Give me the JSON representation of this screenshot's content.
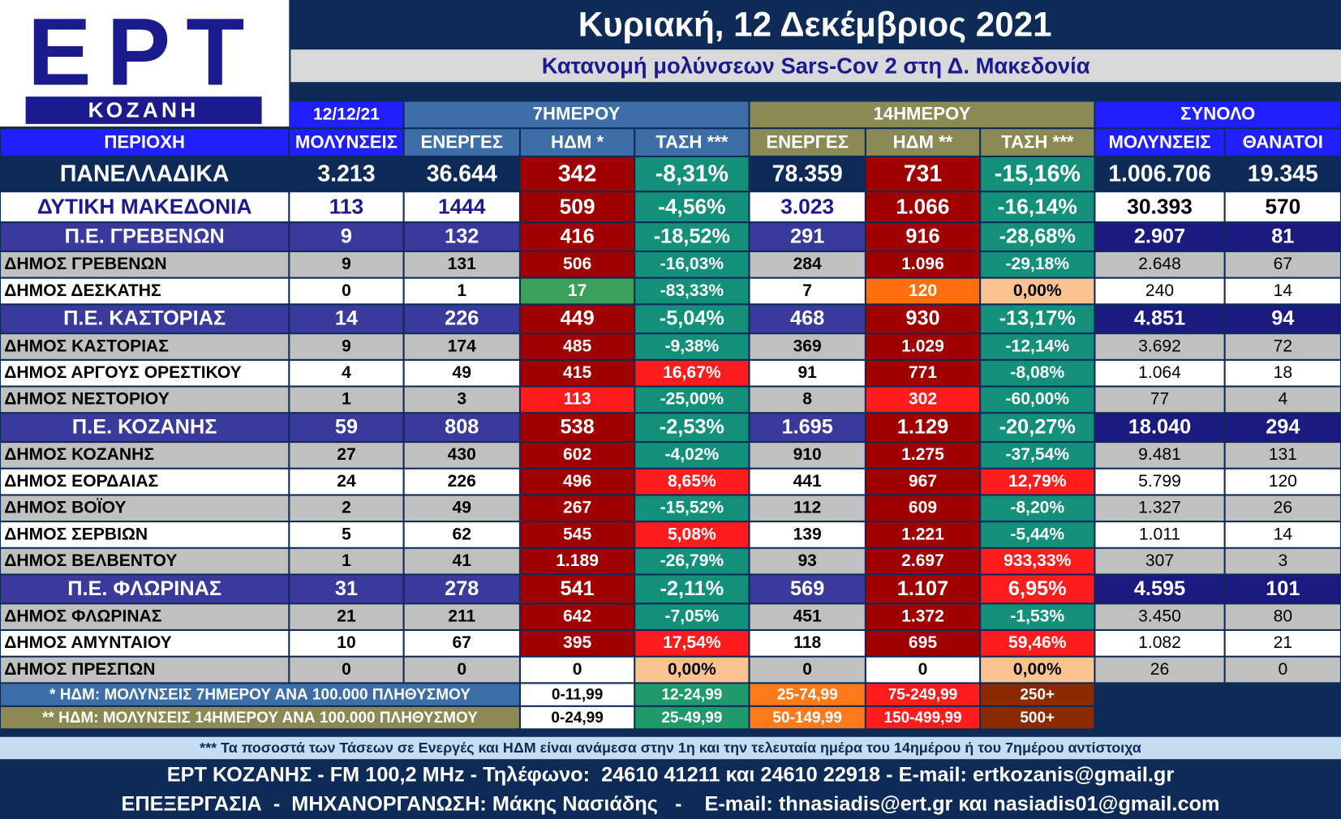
{
  "header": {
    "logo": {
      "brand": "ΕΡΤ",
      "city": "ΚΟΖΑΝΗ"
    },
    "title": "Κυριακή, 12 Δεκέμβριος 2021",
    "subtitle": "Κατανομή μολύνσεων Sars-Cov 2 στη Δ. Μακεδονία"
  },
  "table": {
    "date": "12/12/21",
    "groups": [
      "7ΗΜΕΡΟΥ",
      "14ΗΜΕΡΟΥ",
      "ΣΥΝΟΛΟ"
    ],
    "columns": [
      "ΠΕΡΙΟΧΗ",
      "ΜΟΛΥΝΣΕΙΣ",
      "ΕΝΕΡΓΕΣ",
      "ΗΔΜ *",
      "ΤΑΣΗ ***",
      "ΕΝΕΡΓΕΣ",
      "ΗΔΜ **",
      "ΤΑΣΗ ***",
      "ΜΟΛΥΝΣΕΙΣ",
      "ΘΑΝΑΤΟΙ"
    ],
    "national": [
      "ΠΑΝΕΛΛΑΔΙΚΑ",
      "3.213",
      "36.644",
      "342",
      "-8,31%",
      "78.359",
      "731",
      "-15,16%",
      "1.006.706",
      "19.345"
    ],
    "region": [
      "ΔΥΤΙΚΗ ΜΑΚΕΔΟΝΙΑ",
      "113",
      "1444",
      "509",
      "-4,56%",
      "3.023",
      "1.066",
      "-16,14%",
      "30.393",
      "570"
    ],
    "units": [
      {
        "row": [
          "Π.Ε. ΓΡΕΒΕΝΩΝ",
          "9",
          "132",
          "416",
          "-18,52%",
          "291",
          "916",
          "-28,68%",
          "2.907",
          "81"
        ],
        "municipalities": [
          [
            "ΔΗΜΟΣ ΓΡΕΒΕΝΩΝ",
            "9",
            "131",
            "506",
            "-16,03%",
            "284",
            "1.096",
            "-29,18%",
            "2.648",
            "67"
          ],
          [
            "ΔΗΜΟΣ ΔΕΣΚΑΤΗΣ",
            "0",
            "1",
            "17",
            "-83,33%",
            "7",
            "120",
            "0,00%",
            "240",
            "14"
          ]
        ]
      },
      {
        "row": [
          "Π.Ε. ΚΑΣΤΟΡΙΑΣ",
          "14",
          "226",
          "449",
          "-5,04%",
          "468",
          "930",
          "-13,17%",
          "4.851",
          "94"
        ],
        "municipalities": [
          [
            "ΔΗΜΟΣ ΚΑΣΤΟΡΙΑΣ",
            "9",
            "174",
            "485",
            "-9,38%",
            "369",
            "1.029",
            "-12,14%",
            "3.692",
            "72"
          ],
          [
            "ΔΗΜΟΣ ΑΡΓΟΥΣ ΟΡΕΣΤΙΚΟΥ",
            "4",
            "49",
            "415",
            "16,67%",
            "91",
            "771",
            "-8,08%",
            "1.064",
            "18"
          ],
          [
            "ΔΗΜΟΣ ΝΕΣΤΟΡΙΟΥ",
            "1",
            "3",
            "113",
            "-25,00%",
            "8",
            "302",
            "-60,00%",
            "77",
            "4"
          ]
        ]
      },
      {
        "row": [
          "Π.Ε. ΚΟΖΑΝΗΣ",
          "59",
          "808",
          "538",
          "-2,53%",
          "1.695",
          "1.129",
          "-20,27%",
          "18.040",
          "294"
        ],
        "municipalities": [
          [
            "ΔΗΜΟΣ ΚΟΖΑΝΗΣ",
            "27",
            "430",
            "602",
            "-4,02%",
            "910",
            "1.275",
            "-37,54%",
            "9.481",
            "131"
          ],
          [
            "ΔΗΜΟΣ ΕΟΡΔΑΙΑΣ",
            "24",
            "226",
            "496",
            "8,65%",
            "441",
            "967",
            "12,79%",
            "5.799",
            "120"
          ],
          [
            "ΔΗΜΟΣ ΒΟΪΟΥ",
            "2",
            "49",
            "267",
            "-15,52%",
            "112",
            "609",
            "-8,20%",
            "1.327",
            "26"
          ],
          [
            "ΔΗΜΟΣ ΣΕΡΒΙΩΝ",
            "5",
            "62",
            "545",
            "5,08%",
            "139",
            "1.221",
            "-5,44%",
            "1.011",
            "14"
          ],
          [
            "ΔΗΜΟΣ ΒΕΛΒΕΝΤΟΥ",
            "1",
            "41",
            "1.189",
            "-26,79%",
            "93",
            "2.697",
            "933,33%",
            "307",
            "3"
          ]
        ]
      },
      {
        "row": [
          "Π.Ε. ΦΛΩΡΙΝΑΣ",
          "31",
          "278",
          "541",
          "-2,11%",
          "569",
          "1.107",
          "6,95%",
          "4.595",
          "101"
        ],
        "municipalities": [
          [
            "ΔΗΜΟΣ ΦΛΩΡΙΝΑΣ",
            "21",
            "211",
            "642",
            "-7,05%",
            "451",
            "1.372",
            "-1,53%",
            "3.450",
            "80"
          ],
          [
            "ΔΗΜΟΣ ΑΜΥΝΤΑΙΟΥ",
            "10",
            "67",
            "395",
            "17,54%",
            "118",
            "695",
            "59,46%",
            "1.082",
            "21"
          ],
          [
            "ΔΗΜΟΣ ΠΡΕΣΠΩΝ",
            "0",
            "0",
            "0",
            "0,00%",
            "0",
            "0",
            "0,00%",
            "26",
            "0"
          ]
        ]
      }
    ]
  },
  "legend": {
    "rows": [
      {
        "label": "* ΗΔΜ: ΜΟΛΥΝΣΕΙΣ 7ΗΜΕΡΟΥ ΑΝΑ 100.000 ΠΛΗΘΥΣΜΟΥ",
        "ranges": [
          "0-11,99",
          "12-24,99",
          "25-74,99",
          "75-249,99",
          "250+"
        ]
      },
      {
        "label": "** ΗΔΜ: ΜΟΛΥΝΣΕΙΣ 14ΗΜΕΡΟΥ ΑΝΑ 100.000 ΠΛΗΘΥΣΜΟΥ",
        "ranges": [
          "0-24,99",
          "25-49,99",
          "50-149,99",
          "150-499,99",
          "500+"
        ]
      }
    ]
  },
  "note": "*** Τα ποσοστά των Τάσεων σε Ενεργές και ΗΔΜ είναι ανάμεσα στην 1η και την τελευταία ημέρα του 14ημέρου ή του 7ημέρου αντίστοιχα",
  "footer": [
    "ΕΡΤ ΚΟΖΑΝΗΣ - FM 100,2 MHz - Τηλέφωνο:  24610 41211 και 24610 22918 - E-mail: ertkozanis@gmail.gr",
    "ΕΠΕΞΕΡΓΑΣΙΑ  -  ΜΗΧΑΝΟΡΓΑΝΩΣΗ: Μάκης Νασιάδης   -    E-mail: thnasiadis@ert.gr και nasiadis01@gmail.com"
  ]
}
